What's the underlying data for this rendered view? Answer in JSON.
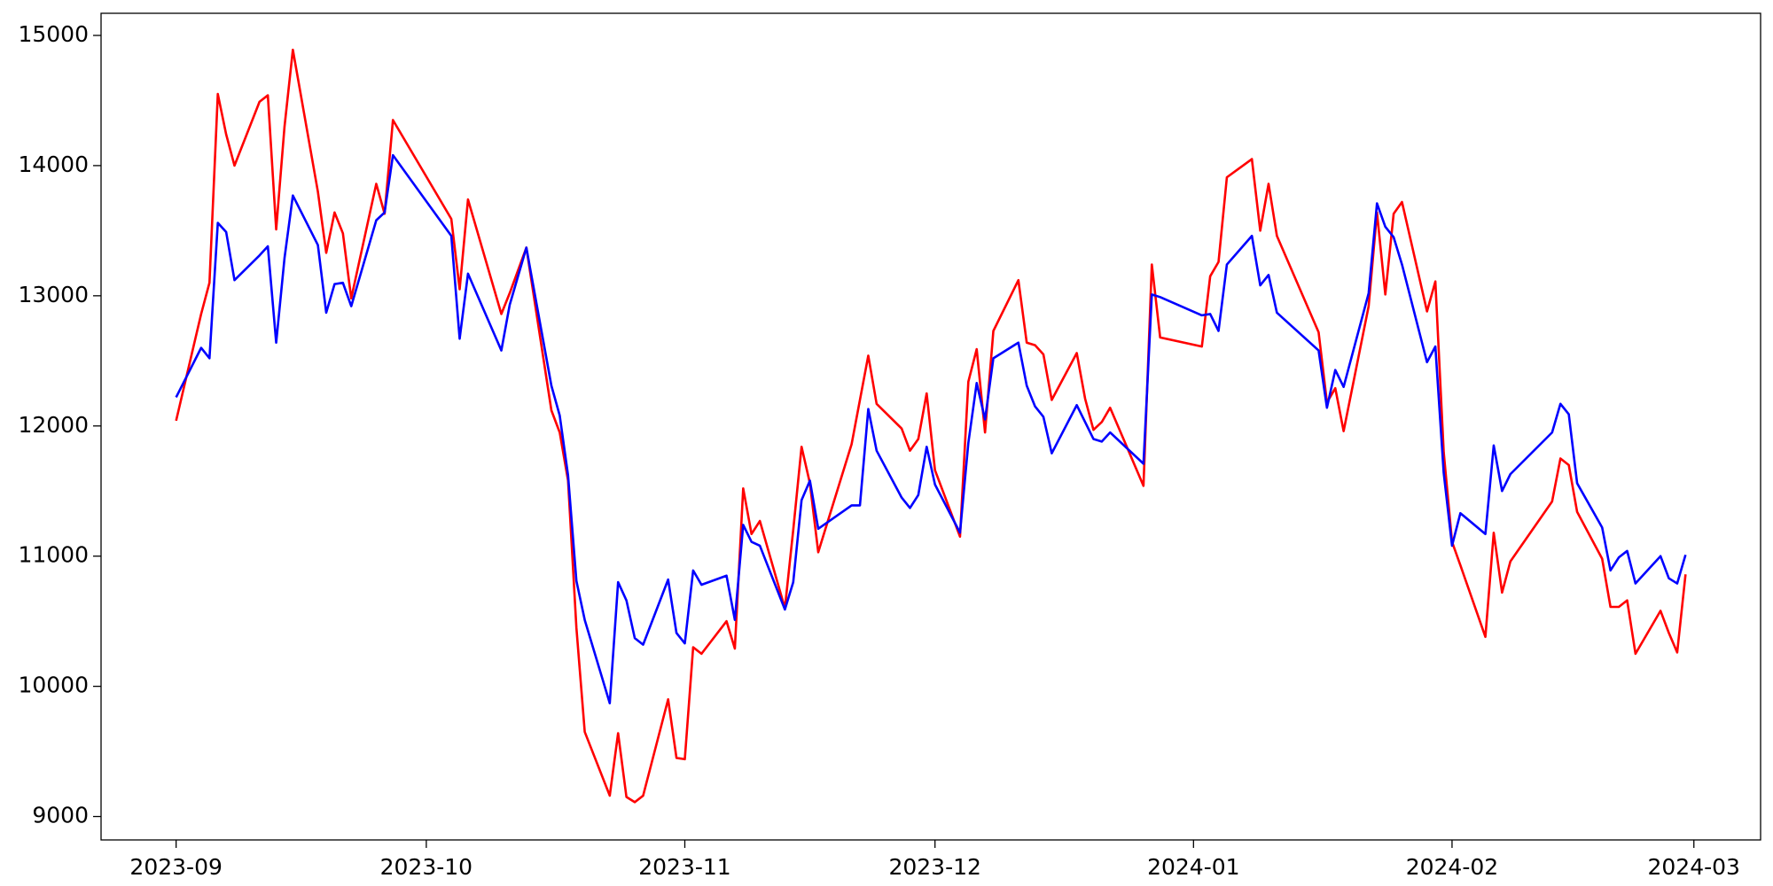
{
  "chart_data": {
    "type": "line",
    "x": [
      "2023-09-01",
      "2023-09-04",
      "2023-09-05",
      "2023-09-06",
      "2023-09-07",
      "2023-09-08",
      "2023-09-11",
      "2023-09-12",
      "2023-09-13",
      "2023-09-14",
      "2023-09-15",
      "2023-09-18",
      "2023-09-19",
      "2023-09-20",
      "2023-09-21",
      "2023-09-22",
      "2023-09-25",
      "2023-09-26",
      "2023-09-27",
      "2023-10-04",
      "2023-10-05",
      "2023-10-06",
      "2023-10-10",
      "2023-10-11",
      "2023-10-13",
      "2023-10-16",
      "2023-10-17",
      "2023-10-18",
      "2023-10-19",
      "2023-10-20",
      "2023-10-23",
      "2023-10-24",
      "2023-10-25",
      "2023-10-26",
      "2023-10-27",
      "2023-10-30",
      "2023-10-31",
      "2023-11-01",
      "2023-11-02",
      "2023-11-03",
      "2023-11-06",
      "2023-11-07",
      "2023-11-08",
      "2023-11-09",
      "2023-11-10",
      "2023-11-13",
      "2023-11-14",
      "2023-11-15",
      "2023-11-16",
      "2023-11-17",
      "2023-11-21",
      "2023-11-22",
      "2023-11-23",
      "2023-11-24",
      "2023-11-27",
      "2023-11-28",
      "2023-11-29",
      "2023-11-30",
      "2023-12-01",
      "2023-12-04",
      "2023-12-05",
      "2023-12-06",
      "2023-12-07",
      "2023-12-08",
      "2023-12-11",
      "2023-12-12",
      "2023-12-13",
      "2023-12-14",
      "2023-12-15",
      "2023-12-18",
      "2023-12-19",
      "2023-12-20",
      "2023-12-21",
      "2023-12-22",
      "2023-12-26",
      "2023-12-27",
      "2023-12-28",
      "2024-01-02",
      "2024-01-03",
      "2024-01-04",
      "2024-01-05",
      "2024-01-08",
      "2024-01-09",
      "2024-01-10",
      "2024-01-11",
      "2024-01-16",
      "2024-01-17",
      "2024-01-18",
      "2024-01-19",
      "2024-01-22",
      "2024-01-23",
      "2024-01-24",
      "2024-01-25",
      "2024-01-26",
      "2024-01-29",
      "2024-01-30",
      "2024-01-31",
      "2024-02-01",
      "2024-02-02",
      "2024-02-05",
      "2024-02-06",
      "2024-02-07",
      "2024-02-08",
      "2024-02-13",
      "2024-02-14",
      "2024-02-15",
      "2024-02-16",
      "2024-02-19",
      "2024-02-20",
      "2024-02-21",
      "2024-02-22",
      "2024-02-23",
      "2024-02-26",
      "2024-02-27",
      "2024-02-28",
      "2024-02-29"
    ],
    "series": [
      {
        "color": "#ff0000",
        "values": [
          12040,
          12860,
          13100,
          14550,
          14240,
          14000,
          14490,
          14540,
          13510,
          14300,
          14890,
          13800,
          13330,
          13640,
          13480,
          12980,
          13860,
          13630,
          14350,
          13590,
          13050,
          13740,
          12860,
          13020,
          13370,
          12120,
          11950,
          11580,
          10450,
          9650,
          9160,
          9640,
          9150,
          9110,
          9160,
          9900,
          9450,
          9440,
          10300,
          10250,
          10500,
          10290,
          11520,
          11170,
          11270,
          10600,
          11200,
          11840,
          11560,
          11030,
          11860,
          12200,
          12540,
          12170,
          11980,
          11810,
          11900,
          12250,
          11660,
          11150,
          12340,
          12590,
          11950,
          12730,
          13120,
          12640,
          12620,
          12550,
          12200,
          12560,
          12210,
          11970,
          12030,
          12140,
          11540,
          13240,
          12680,
          12610,
          13150,
          13260,
          13910,
          14050,
          13500,
          13860,
          13460,
          12720,
          12180,
          12290,
          11960,
          12920,
          13640,
          13010,
          13630,
          13720,
          12880,
          13110,
          11800,
          11110,
          10930,
          10380,
          11180,
          10720,
          10960,
          11420,
          11750,
          11700,
          11340,
          10980,
          10610,
          10610,
          10660,
          10250,
          10580,
          10410,
          10260,
          10860
        ]
      },
      {
        "color": "#0000ff",
        "values": [
          12220,
          12600,
          12520,
          13560,
          13490,
          13120,
          13310,
          13380,
          12640,
          13290,
          13770,
          13390,
          12870,
          13090,
          13100,
          12920,
          13580,
          13640,
          14080,
          13460,
          12670,
          13170,
          12580,
          12930,
          13370,
          12310,
          12080,
          11620,
          10810,
          10510,
          9870,
          10800,
          10660,
          10370,
          10320,
          10820,
          10410,
          10330,
          10890,
          10780,
          10850,
          10510,
          11240,
          11110,
          11080,
          10590,
          10800,
          11430,
          11580,
          11210,
          11390,
          11390,
          12130,
          11810,
          11450,
          11370,
          11470,
          11840,
          11550,
          11180,
          11870,
          12330,
          12050,
          12520,
          12640,
          12310,
          12150,
          12070,
          11790,
          12160,
          12030,
          11900,
          11880,
          11950,
          11710,
          13010,
          12990,
          12850,
          12860,
          12730,
          13240,
          13460,
          13080,
          13160,
          12870,
          12580,
          12140,
          12430,
          12300,
          13020,
          13710,
          13530,
          13450,
          13240,
          12490,
          12610,
          11640,
          11080,
          11330,
          11170,
          11850,
          11500,
          11630,
          11950,
          12170,
          12090,
          11560,
          11220,
          10890,
          10990,
          11040,
          10790,
          11000,
          10830,
          10790,
          11010
        ]
      }
    ],
    "xlim": [
      "2023-08-23",
      "2024-03-09"
    ],
    "xticks": [
      {
        "value": "2023-09-01",
        "label": "2023-09"
      },
      {
        "value": "2023-10-01",
        "label": "2023-10"
      },
      {
        "value": "2023-11-01",
        "label": "2023-11"
      },
      {
        "value": "2023-12-01",
        "label": "2023-12"
      },
      {
        "value": "2024-01-01",
        "label": "2024-01"
      },
      {
        "value": "2024-02-01",
        "label": "2024-02"
      },
      {
        "value": "2024-03-01",
        "label": "2024-03"
      }
    ],
    "ylim": [
      8820,
      15170
    ],
    "yticks": [
      9000,
      10000,
      11000,
      12000,
      13000,
      14000,
      15000
    ],
    "grid": false
  }
}
